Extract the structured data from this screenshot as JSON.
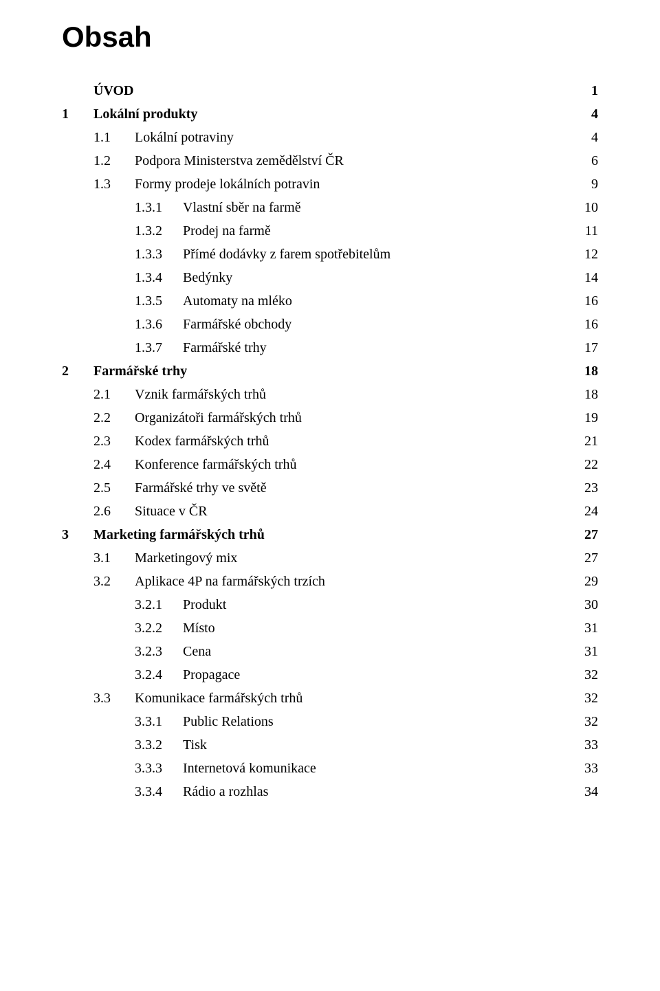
{
  "title": "Obsah",
  "colors": {
    "background": "#ffffff",
    "text": "#000000"
  },
  "fonts": {
    "title_family": "Arial, Helvetica, sans-serif",
    "title_size_pt": 32,
    "body_family": "Times New Roman, Times, serif",
    "body_size_pt": 15
  },
  "toc": {
    "entries": [
      {
        "level": "intro",
        "number": "",
        "label": "ÚVOD",
        "page": "1"
      },
      {
        "level": 0,
        "number": "1",
        "label": "Lokální produkty",
        "page": "4"
      },
      {
        "level": 1,
        "number": "1.1",
        "label": "Lokální potraviny",
        "page": "4"
      },
      {
        "level": 1,
        "number": "1.2",
        "label": "Podpora Ministerstva zemědělství ČR",
        "page": "6"
      },
      {
        "level": 1,
        "number": "1.3",
        "label": "Formy prodeje lokálních potravin",
        "page": "9"
      },
      {
        "level": 2,
        "number": "1.3.1",
        "label": "Vlastní sběr na farmě",
        "page": "10"
      },
      {
        "level": 2,
        "number": "1.3.2",
        "label": "Prodej na farmě",
        "page": "11"
      },
      {
        "level": 2,
        "number": "1.3.3",
        "label": "Přímé dodávky z farem spotřebitelům",
        "page": "12"
      },
      {
        "level": 2,
        "number": "1.3.4",
        "label": "Bedýnky",
        "page": "14"
      },
      {
        "level": 2,
        "number": "1.3.5",
        "label": "Automaty na mléko",
        "page": "16"
      },
      {
        "level": 2,
        "number": "1.3.6",
        "label": "Farmářské obchody",
        "page": "16"
      },
      {
        "level": 2,
        "number": "1.3.7",
        "label": "Farmářské trhy",
        "page": "17"
      },
      {
        "level": 0,
        "number": "2",
        "label": "Farmářské trhy",
        "page": "18"
      },
      {
        "level": 1,
        "number": "2.1",
        "label": "Vznik farmářských trhů",
        "page": "18"
      },
      {
        "level": 1,
        "number": "2.2",
        "label": "Organizátoři farmářských trhů",
        "page": "19"
      },
      {
        "level": 1,
        "number": "2.3",
        "label": "Kodex farmářských trhů",
        "page": "21"
      },
      {
        "level": 1,
        "number": "2.4",
        "label": "Konference farmářských trhů",
        "page": "22"
      },
      {
        "level": 1,
        "number": "2.5",
        "label": "Farmářské trhy ve světě",
        "page": "23"
      },
      {
        "level": 1,
        "number": "2.6",
        "label": "Situace v ČR",
        "page": "24"
      },
      {
        "level": 0,
        "number": "3",
        "label": "Marketing farmářských trhů",
        "page": "27"
      },
      {
        "level": 1,
        "number": "3.1",
        "label": "Marketingový mix",
        "page": "27"
      },
      {
        "level": 1,
        "number": "3.2",
        "label": "Aplikace 4P na farmářských trzích",
        "page": "29"
      },
      {
        "level": 2,
        "number": "3.2.1",
        "label": "Produkt",
        "page": "30"
      },
      {
        "level": 2,
        "number": "3.2.2",
        "label": "Místo",
        "page": "31"
      },
      {
        "level": 2,
        "number": "3.2.3",
        "label": "Cena",
        "page": "31"
      },
      {
        "level": 2,
        "number": "3.2.4",
        "label": "Propagace",
        "page": "32"
      },
      {
        "level": 1,
        "number": "3.3",
        "label": "Komunikace farmářských trhů",
        "page": "32"
      },
      {
        "level": 2,
        "number": "3.3.1",
        "label": "Public Relations",
        "page": "32"
      },
      {
        "level": 2,
        "number": "3.3.2",
        "label": "Tisk",
        "page": "33"
      },
      {
        "level": 2,
        "number": "3.3.3",
        "label": "Internetová komunikace",
        "page": "33"
      },
      {
        "level": 2,
        "number": "3.3.4",
        "label": "Rádio a rozhlas",
        "page": "34"
      }
    ]
  }
}
